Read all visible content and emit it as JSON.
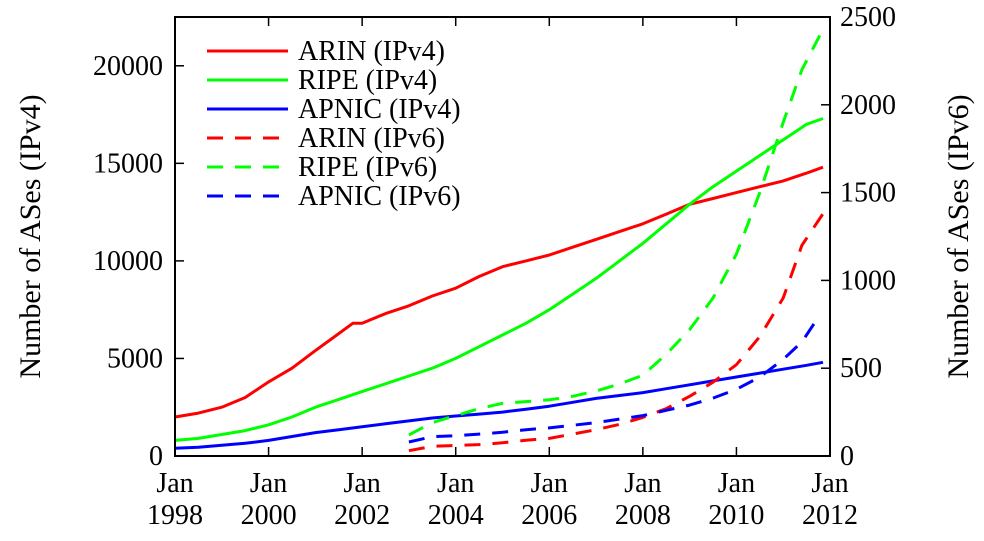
{
  "chart_data": {
    "type": "line",
    "x_axis": {
      "range": [
        1998.0,
        2012.0
      ],
      "ticks": [
        {
          "value": 1998,
          "label_top": "Jan",
          "label_bottom": "1998"
        },
        {
          "value": 2000,
          "label_top": "Jan",
          "label_bottom": "2000"
        },
        {
          "value": 2002,
          "label_top": "Jan",
          "label_bottom": "2002"
        },
        {
          "value": 2004,
          "label_top": "Jan",
          "label_bottom": "2004"
        },
        {
          "value": 2006,
          "label_top": "Jan",
          "label_bottom": "2006"
        },
        {
          "value": 2008,
          "label_top": "Jan",
          "label_bottom": "2008"
        },
        {
          "value": 2010,
          "label_top": "Jan",
          "label_bottom": "2010"
        },
        {
          "value": 2012,
          "label_top": "Jan",
          "label_bottom": "2012"
        }
      ]
    },
    "y_left": {
      "label": "Number of ASes (IPv4)",
      "range": [
        0,
        22500
      ],
      "ticks": [
        0,
        5000,
        10000,
        15000,
        20000
      ]
    },
    "y_right": {
      "label": "Number of ASes (IPv6)",
      "range": [
        0,
        2500
      ],
      "ticks": [
        0,
        500,
        1000,
        1500,
        2000,
        2500
      ]
    },
    "legend_position": "top-left",
    "grid": false,
    "series": [
      {
        "name": "ARIN (IPv4)",
        "color": "#ff0000",
        "dash": "solid",
        "axis": "left",
        "points": [
          [
            1998.0,
            2000
          ],
          [
            1998.5,
            2200
          ],
          [
            1999.0,
            2500
          ],
          [
            1999.5,
            3000
          ],
          [
            2000.0,
            3800
          ],
          [
            2000.5,
            4500
          ],
          [
            2001.0,
            5400
          ],
          [
            2001.4,
            6100
          ],
          [
            2001.8,
            6800
          ],
          [
            2002.0,
            6800
          ],
          [
            2002.5,
            7300
          ],
          [
            2003.0,
            7700
          ],
          [
            2003.5,
            8200
          ],
          [
            2004.0,
            8600
          ],
          [
            2004.5,
            9200
          ],
          [
            2005.0,
            9700
          ],
          [
            2005.5,
            10000
          ],
          [
            2006.0,
            10300
          ],
          [
            2006.5,
            10700
          ],
          [
            2007.0,
            11100
          ],
          [
            2007.5,
            11500
          ],
          [
            2008.0,
            11900
          ],
          [
            2008.5,
            12400
          ],
          [
            2009.0,
            12900
          ],
          [
            2009.5,
            13200
          ],
          [
            2010.0,
            13500
          ],
          [
            2010.5,
            13800
          ],
          [
            2011.0,
            14100
          ],
          [
            2011.5,
            14500
          ],
          [
            2011.85,
            14800
          ]
        ]
      },
      {
        "name": "RIPE (IPv4)",
        "color": "#00ff00",
        "dash": "solid",
        "axis": "left",
        "points": [
          [
            1998.0,
            800
          ],
          [
            1998.5,
            900
          ],
          [
            1999.0,
            1100
          ],
          [
            1999.5,
            1300
          ],
          [
            2000.0,
            1600
          ],
          [
            2000.5,
            2000
          ],
          [
            2001.0,
            2500
          ],
          [
            2001.5,
            2900
          ],
          [
            2002.0,
            3300
          ],
          [
            2002.5,
            3700
          ],
          [
            2003.0,
            4100
          ],
          [
            2003.5,
            4500
          ],
          [
            2004.0,
            5000
          ],
          [
            2004.5,
            5600
          ],
          [
            2005.0,
            6200
          ],
          [
            2005.5,
            6800
          ],
          [
            2006.0,
            7500
          ],
          [
            2006.5,
            8300
          ],
          [
            2007.0,
            9100
          ],
          [
            2007.5,
            10000
          ],
          [
            2008.0,
            10900
          ],
          [
            2008.5,
            11900
          ],
          [
            2009.0,
            12900
          ],
          [
            2009.5,
            13800
          ],
          [
            2010.0,
            14600
          ],
          [
            2010.5,
            15400
          ],
          [
            2011.0,
            16200
          ],
          [
            2011.5,
            17000
          ],
          [
            2011.85,
            17300
          ]
        ]
      },
      {
        "name": "APNIC (IPv4)",
        "color": "#0000ff",
        "dash": "solid",
        "axis": "left",
        "points": [
          [
            1998.0,
            400
          ],
          [
            1998.5,
            450
          ],
          [
            1999.0,
            550
          ],
          [
            1999.5,
            650
          ],
          [
            2000.0,
            800
          ],
          [
            2000.5,
            1000
          ],
          [
            2001.0,
            1200
          ],
          [
            2001.5,
            1350
          ],
          [
            2002.0,
            1500
          ],
          [
            2002.5,
            1650
          ],
          [
            2003.0,
            1800
          ],
          [
            2003.5,
            1950
          ],
          [
            2004.0,
            2050
          ],
          [
            2004.5,
            2150
          ],
          [
            2005.0,
            2250
          ],
          [
            2005.5,
            2400
          ],
          [
            2006.0,
            2550
          ],
          [
            2006.5,
            2750
          ],
          [
            2007.0,
            2950
          ],
          [
            2007.5,
            3100
          ],
          [
            2008.0,
            3250
          ],
          [
            2008.5,
            3450
          ],
          [
            2009.0,
            3650
          ],
          [
            2009.5,
            3850
          ],
          [
            2010.0,
            4050
          ],
          [
            2010.5,
            4250
          ],
          [
            2011.0,
            4450
          ],
          [
            2011.5,
            4650
          ],
          [
            2011.85,
            4800
          ]
        ]
      },
      {
        "name": "ARIN (IPv6)",
        "color": "#ff0000",
        "dash": "dashed",
        "axis": "right",
        "points": [
          [
            2003.0,
            30
          ],
          [
            2003.5,
            55
          ],
          [
            2004.0,
            60
          ],
          [
            2004.5,
            65
          ],
          [
            2005.0,
            75
          ],
          [
            2005.5,
            90
          ],
          [
            2006.0,
            100
          ],
          [
            2006.5,
            125
          ],
          [
            2007.0,
            150
          ],
          [
            2007.5,
            180
          ],
          [
            2008.0,
            220
          ],
          [
            2008.5,
            270
          ],
          [
            2009.0,
            340
          ],
          [
            2009.5,
            420
          ],
          [
            2010.0,
            520
          ],
          [
            2010.5,
            680
          ],
          [
            2011.0,
            900
          ],
          [
            2011.4,
            1200
          ],
          [
            2011.85,
            1380
          ]
        ]
      },
      {
        "name": "RIPE (IPv6)",
        "color": "#00ff00",
        "dash": "dashed",
        "axis": "right",
        "points": [
          [
            2003.0,
            120
          ],
          [
            2003.5,
            190
          ],
          [
            2004.0,
            230
          ],
          [
            2004.5,
            270
          ],
          [
            2005.0,
            300
          ],
          [
            2005.5,
            310
          ],
          [
            2006.0,
            320
          ],
          [
            2006.5,
            340
          ],
          [
            2007.0,
            370
          ],
          [
            2007.5,
            410
          ],
          [
            2008.0,
            460
          ],
          [
            2008.5,
            580
          ],
          [
            2009.0,
            720
          ],
          [
            2009.5,
            900
          ],
          [
            2010.0,
            1150
          ],
          [
            2010.5,
            1500
          ],
          [
            2011.0,
            1900
          ],
          [
            2011.4,
            2200
          ],
          [
            2011.85,
            2430
          ]
        ]
      },
      {
        "name": "APNIC (IPv6)",
        "color": "#0000ff",
        "dash": "dashed",
        "axis": "right",
        "points": [
          [
            2003.0,
            80
          ],
          [
            2003.5,
            110
          ],
          [
            2004.0,
            115
          ],
          [
            2004.5,
            125
          ],
          [
            2005.0,
            135
          ],
          [
            2005.5,
            150
          ],
          [
            2006.0,
            160
          ],
          [
            2006.5,
            175
          ],
          [
            2007.0,
            190
          ],
          [
            2007.5,
            210
          ],
          [
            2008.0,
            230
          ],
          [
            2008.5,
            260
          ],
          [
            2009.0,
            290
          ],
          [
            2009.5,
            330
          ],
          [
            2010.0,
            380
          ],
          [
            2010.5,
            450
          ],
          [
            2011.0,
            550
          ],
          [
            2011.4,
            650
          ],
          [
            2011.75,
            790
          ]
        ]
      }
    ]
  }
}
